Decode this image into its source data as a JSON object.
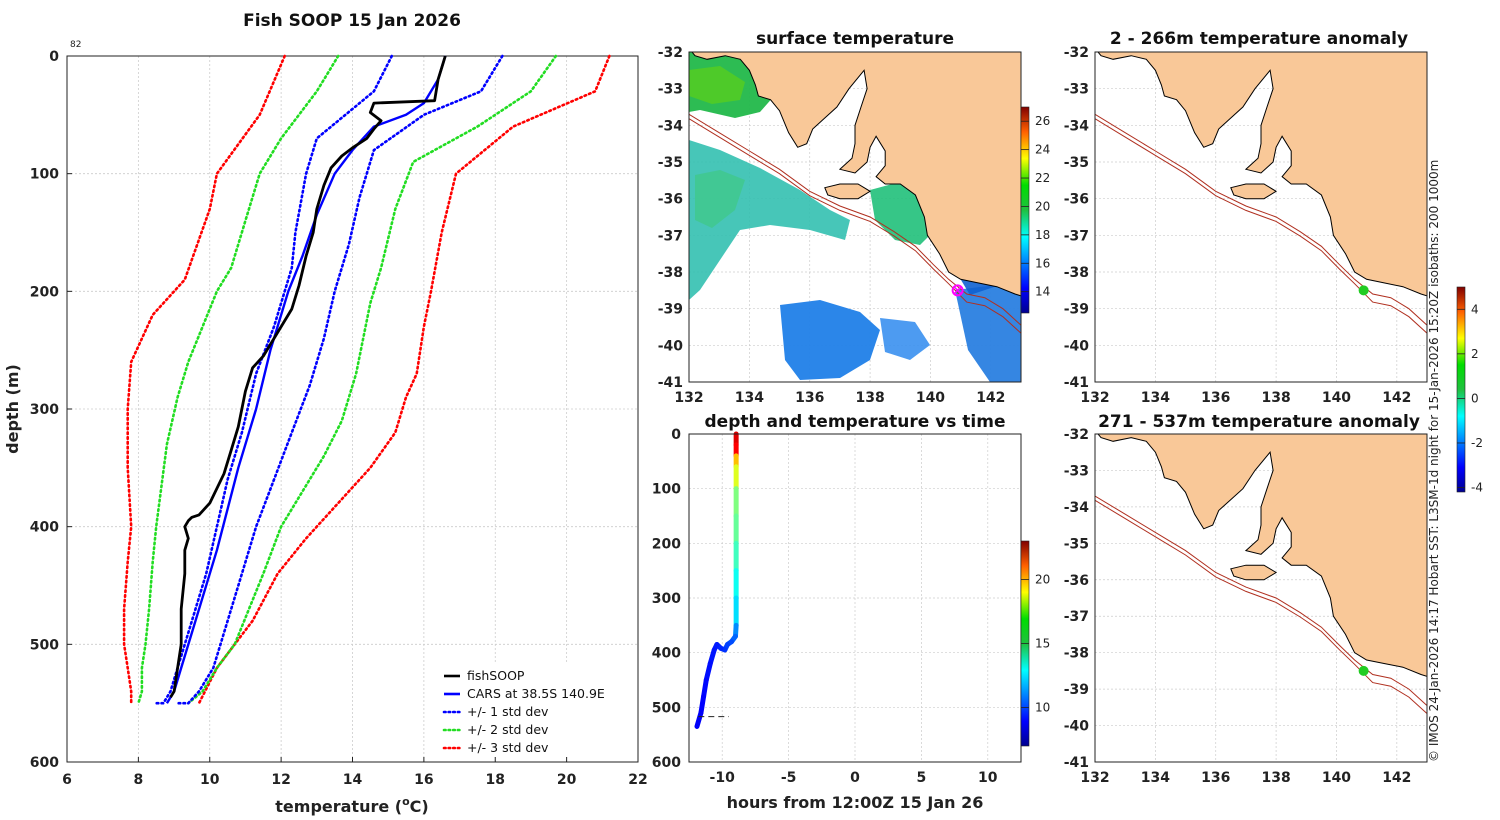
{
  "chart_data": [
    {
      "type": "line",
      "title": "Fish SOOP 15 Jan 2026",
      "corner_label": "82",
      "xlabel": "temperature (",
      "xlabel_sup": "o",
      "xlabel_end": "C)",
      "ylabel": "depth (m)",
      "xlim": [
        6,
        22
      ],
      "ylim": [
        0,
        600
      ],
      "xticks": [
        "6",
        "8",
        "10",
        "12",
        "14",
        "16",
        "18",
        "20",
        "22"
      ],
      "yticks": [
        "0",
        "100",
        "200",
        "300",
        "400",
        "500",
        "600"
      ],
      "series": [
        {
          "name": "fishSOOP",
          "color": "#000000",
          "style": "solid",
          "x": [
            16.6,
            16.5,
            16.4,
            16.3,
            14.6,
            14.5,
            14.8,
            14.6,
            14.4,
            14.0,
            13.7,
            13.4,
            13.2,
            13.0,
            12.9,
            12.7,
            12.5,
            12.3,
            11.9,
            11.5,
            11.2,
            11.0,
            10.8,
            10.6,
            10.4,
            10.0,
            9.7,
            9.5,
            9.4,
            9.3,
            9.4,
            9.3,
            9.3,
            9.2,
            9.2,
            9.1,
            9.0,
            8.9
          ],
          "y": [
            0,
            10,
            20,
            38,
            40,
            48,
            55,
            62,
            70,
            78,
            85,
            95,
            110,
            130,
            150,
            170,
            195,
            215,
            235,
            255,
            265,
            285,
            315,
            335,
            355,
            380,
            390,
            392,
            395,
            400,
            410,
            420,
            440,
            470,
            500,
            520,
            540,
            545
          ]
        },
        {
          "name": "CARS at 38.5S 140.9E",
          "color": "#0000ff",
          "style": "solid",
          "x": [
            16.6,
            16.4,
            16.0,
            15.5,
            14.6,
            14.0,
            13.5,
            13.0,
            12.6,
            12.2,
            11.7,
            11.3,
            10.8,
            10.2,
            9.6,
            9.2,
            9.0,
            8.8
          ],
          "y": [
            0,
            20,
            40,
            50,
            60,
            80,
            100,
            135,
            170,
            200,
            250,
            300,
            350,
            420,
            480,
            520,
            540,
            550
          ]
        },
        {
          "name": "+/- 1 std dev",
          "color": "#0000ff",
          "style": "dotted",
          "x": [
            15.1,
            14.6,
            13.0,
            12.7,
            12.4,
            12.3,
            12.1,
            11.8,
            11.3,
            10.9,
            10.5,
            10.2,
            9.9,
            9.6,
            9.3,
            9.1,
            8.9,
            8.7,
            8.5
          ],
          "y": [
            0,
            30,
            70,
            100,
            150,
            180,
            200,
            230,
            270,
            320,
            360,
            400,
            440,
            470,
            500,
            520,
            540,
            550,
            550
          ]
        },
        {
          "name": "+/- 1 std dev",
          "color": "#0000ff",
          "style": "dotted",
          "x": [
            18.2,
            17.6,
            16.0,
            14.6,
            14.2,
            13.9,
            13.5,
            13.2,
            12.8,
            12.3,
            11.8,
            11.3,
            10.9,
            10.6,
            10.3,
            10.1,
            9.7,
            9.4,
            9.1
          ],
          "y": [
            0,
            30,
            50,
            80,
            120,
            160,
            200,
            240,
            280,
            320,
            360,
            400,
            440,
            470,
            500,
            520,
            540,
            550,
            550
          ]
        },
        {
          "name": "+/- 2 std dev",
          "color": "#22dd22",
          "style": "dotted",
          "x": [
            13.6,
            13.0,
            12.0,
            11.4,
            11.0,
            10.6,
            10.2,
            9.8,
            9.4,
            9.1,
            8.8,
            8.5,
            8.4,
            8.3,
            8.2,
            8.1,
            8.1,
            8.0
          ],
          "y": [
            0,
            30,
            70,
            100,
            140,
            180,
            200,
            230,
            260,
            290,
            330,
            400,
            430,
            470,
            500,
            520,
            540,
            550
          ]
        },
        {
          "name": "+/- 2 std dev",
          "color": "#22dd22",
          "style": "dotted",
          "x": [
            19.7,
            19.0,
            17.5,
            15.7,
            15.2,
            14.8,
            14.5,
            14.3,
            14.1,
            13.7,
            13.2,
            12.6,
            12.0,
            11.5,
            11.1,
            10.7,
            10.2,
            9.8,
            9.4
          ],
          "y": [
            0,
            30,
            60,
            90,
            130,
            180,
            210,
            240,
            270,
            310,
            340,
            370,
            400,
            440,
            470,
            500,
            520,
            540,
            550
          ]
        },
        {
          "name": "+/- 3 std dev",
          "color": "#ff0000",
          "style": "dotted",
          "x": [
            12.1,
            11.4,
            10.2,
            10.0,
            9.3,
            8.4,
            7.8,
            7.7,
            7.7,
            7.8,
            7.7,
            7.6,
            7.6,
            7.7,
            7.8,
            7.8
          ],
          "y": [
            0,
            50,
            100,
            130,
            190,
            220,
            260,
            300,
            350,
            400,
            430,
            470,
            500,
            520,
            540,
            550
          ]
        },
        {
          "name": "+/- 3 std dev",
          "color": "#ff0000",
          "style": "dotted",
          "x": [
            21.2,
            20.8,
            18.5,
            16.9,
            16.5,
            16.2,
            16.0,
            15.9,
            15.8,
            15.5,
            15.2,
            14.5,
            13.6,
            12.7,
            11.9,
            11.2,
            10.7,
            10.2,
            9.7
          ],
          "y": [
            0,
            30,
            60,
            100,
            150,
            200,
            230,
            250,
            270,
            290,
            320,
            350,
            380,
            410,
            440,
            480,
            500,
            520,
            550
          ]
        }
      ],
      "legend": {
        "position": "bottom-right",
        "entries": [
          "fishSOOP",
          "CARS at 38.5S 140.9E",
          "+/- 1 std dev",
          "+/- 2 std dev",
          "+/- 3 std dev"
        ]
      }
    },
    {
      "type": "heatmap",
      "title": "surface temperature",
      "xlim": [
        132,
        143
      ],
      "ylim": [
        -41,
        -32
      ],
      "xticks": [
        "132",
        "134",
        "136",
        "138",
        "140",
        "142"
      ],
      "yticks": [
        "-32",
        "-33",
        "-34",
        "-35",
        "-36",
        "-37",
        "-38",
        "-39",
        "-40",
        "-41"
      ],
      "colorbar": {
        "range": [
          12.5,
          27
        ],
        "ticks": [
          "26",
          "24",
          "22",
          "20",
          "18",
          "16",
          "14"
        ]
      },
      "marker": {
        "lon": 140.9,
        "lat": -38.5,
        "color": "#ff00ff"
      }
    },
    {
      "type": "scatter",
      "title": "depth and temperature vs time",
      "xlabel": "hours from 12:00Z 15 Jan 26",
      "xlim": [
        -12.5,
        12.5
      ],
      "ylim": [
        0,
        600
      ],
      "xticks": [
        "-10",
        "-5",
        "0",
        "5",
        "10"
      ],
      "yticks": [
        "0",
        "100",
        "200",
        "300",
        "400",
        "500",
        "600"
      ],
      "colorbar": {
        "range": [
          7,
          23
        ],
        "ticks": [
          "20",
          "15",
          "10"
        ]
      },
      "points": [
        {
          "t": -8.95,
          "d": 0,
          "temp": 21.5
        },
        {
          "t": -8.95,
          "d": 20,
          "temp": 21.0
        },
        {
          "t": -8.95,
          "d": 40,
          "temp": 18.0
        },
        {
          "t": -8.95,
          "d": 60,
          "temp": 16.5
        },
        {
          "t": -8.95,
          "d": 100,
          "temp": 15.0
        },
        {
          "t": -8.95,
          "d": 150,
          "temp": 14.6
        },
        {
          "t": -8.95,
          "d": 200,
          "temp": 14.0
        },
        {
          "t": -8.95,
          "d": 250,
          "temp": 13.2
        },
        {
          "t": -8.95,
          "d": 300,
          "temp": 12.5
        },
        {
          "t": -8.95,
          "d": 350,
          "temp": 11.2
        },
        {
          "t": -9.0,
          "d": 370,
          "temp": 10.6
        },
        {
          "t": -9.3,
          "d": 380,
          "temp": 10.2
        },
        {
          "t": -9.6,
          "d": 385,
          "temp": 10.0
        },
        {
          "t": -9.8,
          "d": 395,
          "temp": 9.8
        },
        {
          "t": -10.1,
          "d": 392,
          "temp": 9.6
        },
        {
          "t": -10.4,
          "d": 385,
          "temp": 9.4
        },
        {
          "t": -10.6,
          "d": 395,
          "temp": 9.3
        },
        {
          "t": -10.9,
          "d": 420,
          "temp": 9.2
        },
        {
          "t": -11.2,
          "d": 450,
          "temp": 9.1
        },
        {
          "t": -11.4,
          "d": 480,
          "temp": 9.0
        },
        {
          "t": -11.6,
          "d": 510,
          "temp": 8.9
        },
        {
          "t": -11.9,
          "d": 535,
          "temp": 8.8
        }
      ],
      "bottom_line_depth": 517
    },
    {
      "type": "heatmap",
      "title": "2 - 266m temperature anomaly",
      "xlim": [
        132,
        143
      ],
      "ylim": [
        -41,
        -32
      ],
      "xticks": [
        "132",
        "134",
        "136",
        "138",
        "140",
        "142"
      ],
      "yticks": [
        "-32",
        "-33",
        "-34",
        "-35",
        "-36",
        "-37",
        "-38",
        "-39",
        "-40",
        "-41"
      ],
      "marker": {
        "lon": 140.9,
        "lat": -38.5,
        "color": "#22cc22"
      },
      "colorbar": {
        "range": [
          -4.2,
          5
        ],
        "ticks": [
          "4",
          "2",
          "0",
          "-2",
          "-4"
        ]
      }
    },
    {
      "type": "heatmap",
      "title": "271 - 537m temperature anomaly",
      "xlim": [
        132,
        143
      ],
      "ylim": [
        -41,
        -32
      ],
      "xticks": [
        "132",
        "134",
        "136",
        "138",
        "140",
        "142"
      ],
      "yticks": [
        "-32",
        "-33",
        "-34",
        "-35",
        "-36",
        "-37",
        "-38",
        "-39",
        "-40",
        "-41"
      ],
      "marker": {
        "lon": 140.9,
        "lat": -38.5,
        "color": "#22cc22"
      }
    }
  ],
  "footer_note": "© IMOS 24-Jan-2026 14:17 Hobart SST: L3SM-1d night for 15-Jan-2026 15:20Z isobaths: 200  1000m",
  "colors": {
    "land": "#f9c898",
    "isobath": "#b03020",
    "grid": "#cccccc"
  }
}
